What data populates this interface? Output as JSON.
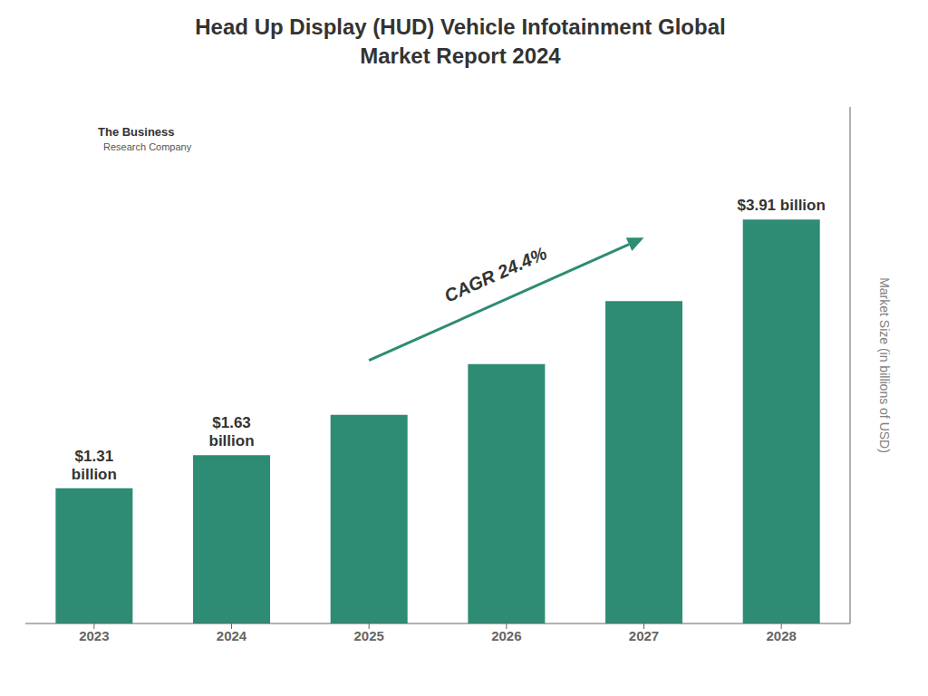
{
  "chart_data": {
    "type": "bar",
    "title": "Head Up Display (HUD) Vehicle Infotainment Global\nMarket Report 2024",
    "categories": [
      "2023",
      "2024",
      "2025",
      "2026",
      "2027",
      "2028"
    ],
    "values": [
      1.31,
      1.63,
      2.02,
      2.51,
      3.12,
      3.91
    ],
    "value_labels": [
      "$1.31\nbillion",
      "$1.63\nbillion",
      null,
      null,
      null,
      "$3.91 billion"
    ],
    "color": "#2e8b74",
    "ylim": [
      0,
      5.0
    ],
    "y_label": "Market Size (in billions of USD)",
    "tick_labels": "x",
    "grid": false,
    "annotations": [
      "CAGR 24.4%",
      "The Business",
      "Research Company"
    ]
  }
}
